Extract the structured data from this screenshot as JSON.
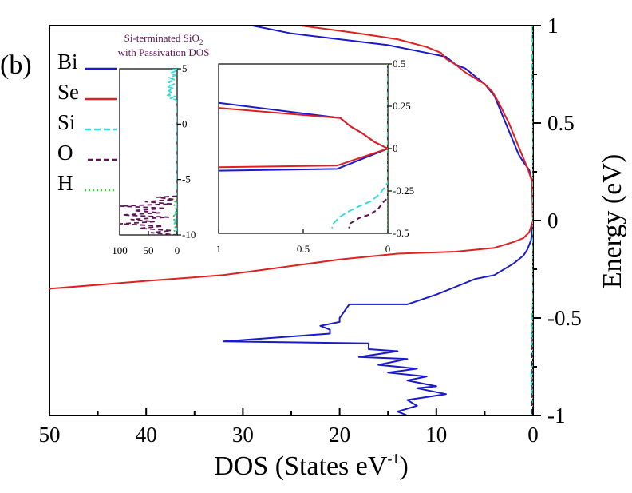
{
  "panel_label": "(b)",
  "annotation": {
    "line1": "Si-terminated SiO",
    "line1_sub": "2",
    "line2": "with Passivation DOS"
  },
  "colors": {
    "Bi": "#1a1acc",
    "Se": "#e02020",
    "Si": "#33dddd",
    "O": "#5b1553",
    "H": "#33cc33",
    "note": "#5b1553"
  },
  "legend": [
    {
      "name": "Bi",
      "color": "#1a1acc",
      "dash": ""
    },
    {
      "name": "Se",
      "color": "#e02020",
      "dash": ""
    },
    {
      "name": "Si",
      "color": "#33dddd",
      "dash": "8,4"
    },
    {
      "name": "O",
      "color": "#5b1553",
      "dash": "6,4"
    },
    {
      "name": "H",
      "color": "#33cc33",
      "dash": "2,3"
    }
  ],
  "chart_data": [
    {
      "id": "main",
      "type": "line",
      "title": "",
      "xlabel": "DOS (States eV",
      "xlabel_sup": "-1",
      "xlabel_end": ")",
      "ylabel": "Energy (eV)",
      "xlim": [
        50,
        0
      ],
      "ylim": [
        -1,
        1
      ],
      "x_reversed": true,
      "xticks": [
        50,
        40,
        30,
        20,
        10,
        0
      ],
      "xtick_labels": [
        "50",
        "40",
        "30",
        "20",
        "10",
        "0"
      ],
      "yticks": [
        -1,
        -0.5,
        0,
        0.5,
        1
      ],
      "ytick_labels": [
        "-1",
        "-0.5",
        "0",
        "0.5",
        "1"
      ],
      "y_axis_side": "right",
      "grid": false,
      "series": [
        {
          "name": "Bi",
          "color": "#1a1acc",
          "dash": "",
          "points": [
            [
              29,
              1.0
            ],
            [
              25,
              0.96
            ],
            [
              20,
              0.93
            ],
            [
              15,
              0.9
            ],
            [
              12,
              0.87
            ],
            [
              9,
              0.84
            ],
            [
              8,
              0.8
            ],
            [
              7,
              0.78
            ],
            [
              6,
              0.74
            ],
            [
              5,
              0.7
            ],
            [
              4,
              0.64
            ],
            [
              3.5,
              0.58
            ],
            [
              3,
              0.52
            ],
            [
              2.5,
              0.46
            ],
            [
              2,
              0.4
            ],
            [
              1.5,
              0.34
            ],
            [
              1,
              0.3
            ],
            [
              0.4,
              0.26
            ],
            [
              0.1,
              0.2
            ],
            [
              0,
              0.0
            ],
            [
              0.2,
              -0.1
            ],
            [
              0.6,
              -0.15
            ],
            [
              1,
              -0.18
            ],
            [
              2,
              -0.22
            ],
            [
              4,
              -0.28
            ],
            [
              6,
              -0.3
            ],
            [
              8,
              -0.34
            ],
            [
              10,
              -0.38
            ],
            [
              13,
              -0.43
            ],
            [
              19,
              -0.43
            ],
            [
              20,
              -0.5
            ],
            [
              20,
              -0.52
            ],
            [
              22,
              -0.54
            ],
            [
              21,
              -0.56
            ],
            [
              21,
              -0.58
            ],
            [
              32,
              -0.62
            ],
            [
              17,
              -0.63
            ],
            [
              17,
              -0.66
            ],
            [
              14,
              -0.67
            ],
            [
              18,
              -0.7
            ],
            [
              13,
              -0.71
            ],
            [
              16,
              -0.74
            ],
            [
              12,
              -0.76
            ],
            [
              15,
              -0.78
            ],
            [
              11,
              -0.8
            ],
            [
              13,
              -0.82
            ],
            [
              10,
              -0.85
            ],
            [
              12,
              -0.86
            ],
            [
              9,
              -0.89
            ],
            [
              13,
              -0.92
            ],
            [
              12,
              -0.95
            ],
            [
              14,
              -0.98
            ],
            [
              13,
              -1.0
            ]
          ]
        },
        {
          "name": "Se",
          "color": "#e02020",
          "dash": "",
          "points": [
            [
              24,
              1.0
            ],
            [
              18,
              0.96
            ],
            [
              14,
              0.93
            ],
            [
              11,
              0.89
            ],
            [
              9.5,
              0.86
            ],
            [
              9,
              0.83
            ],
            [
              8,
              0.8
            ],
            [
              7,
              0.76
            ],
            [
              6,
              0.73
            ],
            [
              5,
              0.7
            ],
            [
              4.2,
              0.66
            ],
            [
              3.5,
              0.6
            ],
            [
              3,
              0.55
            ],
            [
              2.5,
              0.5
            ],
            [
              2,
              0.44
            ],
            [
              1.5,
              0.38
            ],
            [
              1,
              0.32
            ],
            [
              0.5,
              0.26
            ],
            [
              0.1,
              0.2
            ],
            [
              0,
              0.0
            ],
            [
              0.4,
              -0.06
            ],
            [
              1,
              -0.09
            ],
            [
              2,
              -0.11
            ],
            [
              4,
              -0.14
            ],
            [
              8,
              -0.16
            ],
            [
              14,
              -0.17
            ],
            [
              20,
              -0.2
            ],
            [
              26,
              -0.24
            ],
            [
              32,
              -0.28
            ],
            [
              40,
              -0.31
            ],
            [
              50,
              -0.35
            ],
            [
              51,
              -0.36
            ]
          ]
        },
        {
          "name": "Si",
          "color": "#33dddd",
          "dash": "8,4",
          "points": [
            [
              0.05,
              1.0
            ],
            [
              0.1,
              0.8
            ],
            [
              0.05,
              0.6
            ],
            [
              0,
              0.5
            ],
            [
              0,
              0.0
            ],
            [
              0,
              -0.4
            ],
            [
              0.1,
              -0.5
            ],
            [
              0.15,
              -0.6
            ],
            [
              0.1,
              -0.7
            ],
            [
              0.2,
              -0.8
            ],
            [
              0.1,
              -0.9
            ],
            [
              0.15,
              -1.0
            ]
          ]
        },
        {
          "name": "O",
          "color": "#5b1553",
          "dash": "6,4",
          "points": [
            [
              0,
              1.0
            ],
            [
              0,
              0.0
            ],
            [
              0,
              -0.5
            ],
            [
              0.1,
              -0.7
            ],
            [
              0.05,
              -0.8
            ],
            [
              0.1,
              -1.0
            ]
          ]
        },
        {
          "name": "H",
          "color": "#33cc33",
          "dash": "2,3",
          "points": [
            [
              0,
              1.0
            ],
            [
              0,
              -1.0
            ]
          ]
        }
      ]
    },
    {
      "id": "inset-left",
      "type": "line",
      "title": "",
      "xlabel": "",
      "ylabel": "",
      "xlim": [
        100,
        0
      ],
      "ylim": [
        -10,
        5
      ],
      "x_reversed": true,
      "xticks": [
        100,
        50,
        0
      ],
      "xtick_labels": [
        "100",
        "50",
        "0"
      ],
      "yticks": [
        -10,
        -5,
        0,
        5
      ],
      "ytick_labels": [
        "-10",
        "-5",
        "0",
        "5"
      ],
      "y_axis_side": "right",
      "grid": false,
      "series": [
        {
          "name": "Si",
          "color": "#33dddd",
          "dash": "8,4",
          "points": [
            [
              0,
              5
            ],
            [
              10,
              4.9
            ],
            [
              2,
              4.8
            ],
            [
              12,
              4.6
            ],
            [
              3,
              4.4
            ],
            [
              14,
              4.2
            ],
            [
              4,
              4.0
            ],
            [
              16,
              3.8
            ],
            [
              5,
              3.6
            ],
            [
              18,
              3.4
            ],
            [
              6,
              3.2
            ],
            [
              15,
              3.0
            ],
            [
              8,
              2.8
            ],
            [
              17,
              2.6
            ],
            [
              4,
              2.5
            ],
            [
              12,
              2.3
            ],
            [
              2,
              2.2
            ],
            [
              0,
              2.0
            ],
            [
              0,
              -7.5
            ],
            [
              4,
              -7.7
            ],
            [
              1,
              -8.0
            ],
            [
              6,
              -8.3
            ],
            [
              2,
              -8.6
            ],
            [
              5,
              -9.0
            ],
            [
              1,
              -9.4
            ],
            [
              0,
              -10
            ]
          ]
        },
        {
          "name": "O",
          "color": "#5b1553",
          "dash": "6,4",
          "points": [
            [
              0,
              -6.5
            ],
            [
              35,
              -6.6
            ],
            [
              5,
              -6.8
            ],
            [
              55,
              -7.0
            ],
            [
              10,
              -7.2
            ],
            [
              100,
              -7.4
            ],
            [
              20,
              -7.6
            ],
            [
              75,
              -7.8
            ],
            [
              30,
              -8.0
            ],
            [
              95,
              -8.2
            ],
            [
              15,
              -8.4
            ],
            [
              80,
              -8.6
            ],
            [
              40,
              -8.8
            ],
            [
              100,
              -9.0
            ],
            [
              25,
              -9.2
            ],
            [
              65,
              -9.4
            ],
            [
              10,
              -9.6
            ],
            [
              45,
              -9.8
            ],
            [
              0,
              -10
            ]
          ]
        },
        {
          "name": "H",
          "color": "#33cc33",
          "dash": "2,3",
          "points": [
            [
              0,
              -6.6
            ],
            [
              6,
              -7.2
            ],
            [
              1,
              -7.8
            ],
            [
              7,
              -8.4
            ],
            [
              2,
              -9.0
            ],
            [
              5,
              -9.6
            ],
            [
              0,
              -10
            ]
          ]
        }
      ]
    },
    {
      "id": "inset-right",
      "type": "line",
      "title": "",
      "xlabel": "",
      "ylabel": "",
      "xlim": [
        1,
        0
      ],
      "ylim": [
        -0.5,
        0.5
      ],
      "x_reversed": true,
      "xticks": [
        1,
        0.5,
        0
      ],
      "xtick_labels": [
        "1",
        "0.5",
        "0"
      ],
      "yticks": [
        -0.5,
        -0.25,
        0,
        0.25,
        0.5
      ],
      "ytick_labels": [
        "-0.5",
        "-0.25",
        "0",
        "0.25",
        "0.5"
      ],
      "y_axis_side": "right",
      "grid": false,
      "series": [
        {
          "name": "Bi",
          "color": "#1a1acc",
          "dash": "",
          "points": [
            [
              1.0,
              0.27
            ],
            [
              0.28,
              0.18
            ],
            [
              0.22,
              0.13
            ],
            [
              0.15,
              0.09
            ],
            [
              0.08,
              0.04
            ],
            [
              0.0,
              0.0
            ],
            [
              0.3,
              -0.12
            ],
            [
              1.0,
              -0.13
            ]
          ]
        },
        {
          "name": "Se",
          "color": "#e02020",
          "dash": "",
          "points": [
            [
              1.0,
              0.24
            ],
            [
              0.28,
              0.18
            ],
            [
              0.22,
              0.13
            ],
            [
              0.15,
              0.09
            ],
            [
              0.08,
              0.04
            ],
            [
              0.0,
              0.0
            ],
            [
              0.3,
              -0.1
            ],
            [
              1.0,
              -0.11
            ]
          ]
        },
        {
          "name": "Si",
          "color": "#33dddd",
          "dash": "8,4",
          "points": [
            [
              0,
              0.5
            ],
            [
              0,
              -0.2
            ],
            [
              0.02,
              -0.23
            ],
            [
              0.05,
              -0.27
            ],
            [
              0.1,
              -0.31
            ],
            [
              0.17,
              -0.34
            ],
            [
              0.23,
              -0.37
            ],
            [
              0.28,
              -0.4
            ],
            [
              0.32,
              -0.44
            ],
            [
              0.33,
              -0.47
            ]
          ]
        },
        {
          "name": "O",
          "color": "#5b1553",
          "dash": "6,4",
          "points": [
            [
              0,
              0.5
            ],
            [
              0,
              -0.29
            ],
            [
              0.03,
              -0.32
            ],
            [
              0.06,
              -0.36
            ],
            [
              0.11,
              -0.39
            ],
            [
              0.17,
              -0.41
            ],
            [
              0.22,
              -0.44
            ],
            [
              0.23,
              -0.47
            ]
          ]
        },
        {
          "name": "H",
          "color": "#33cc33",
          "dash": "2,3",
          "points": [
            [
              0,
              0.5
            ],
            [
              0,
              -0.5
            ]
          ]
        }
      ]
    }
  ]
}
